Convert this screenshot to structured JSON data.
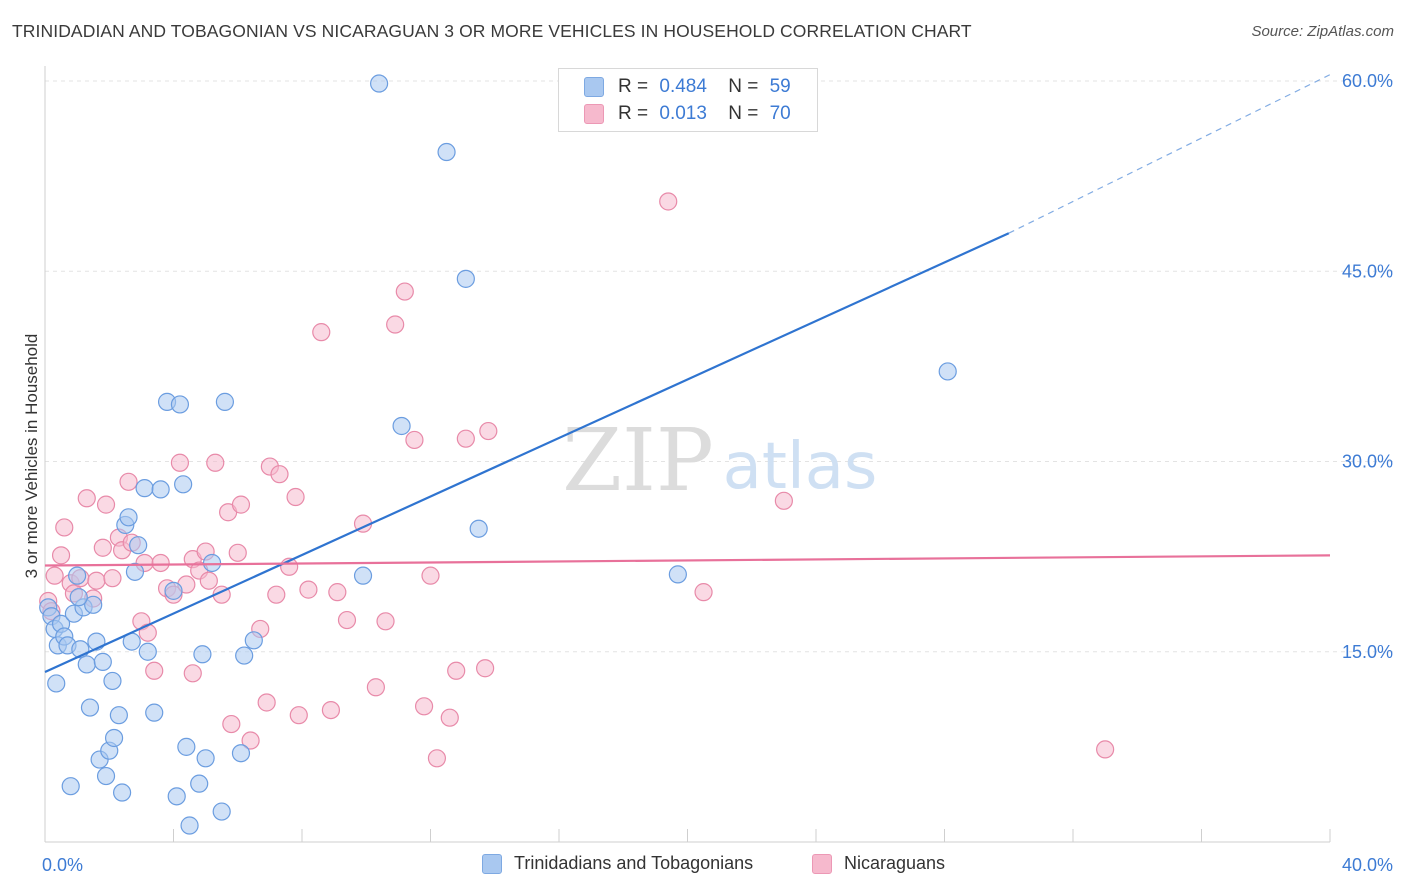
{
  "header": {
    "title": "TRINIDADIAN AND TOBAGONIAN VS NICARAGUAN 3 OR MORE VEHICLES IN HOUSEHOLD CORRELATION CHART",
    "source": "Source: ZipAtlas.com"
  },
  "watermark": {
    "zip": "ZIP",
    "atlas": "atlas"
  },
  "legend_top": {
    "rows": [
      {
        "r_label": "R =",
        "r_value": "0.484",
        "n_label": "N =",
        "n_value": "59",
        "color": "#a9c8f0"
      },
      {
        "r_label": "R =",
        "r_value": "0.013",
        "n_label": "N =",
        "n_value": "70",
        "color": "#f6b9cd"
      }
    ]
  },
  "legend_bottom": {
    "items": [
      {
        "label": "Trinidadians and Tobagonians",
        "color": "#a9c8f0"
      },
      {
        "label": "Nicaraguans",
        "color": "#f6b9cd"
      }
    ]
  },
  "chart_data": {
    "type": "scatter",
    "title": "TRINIDADIAN AND TOBAGONIAN VS NICARAGUAN 3 OR MORE VEHICLES IN HOUSEHOLD CORRELATION CHART",
    "xlabel": "",
    "ylabel": "3 or more Vehicles in Household",
    "xlim": [
      0,
      40
    ],
    "ylim": [
      0,
      60
    ],
    "x_tick_labels": [
      {
        "value": 0,
        "label": "0.0%"
      },
      {
        "value": 40,
        "label": "40.0%"
      }
    ],
    "y_tick_labels": [
      {
        "value": 15,
        "label": "15.0%"
      },
      {
        "value": 30,
        "label": "30.0%"
      },
      {
        "value": 45,
        "label": "45.0%"
      },
      {
        "value": 60,
        "label": "60.0%"
      }
    ],
    "grid": true,
    "legend_position": "top-center",
    "colors": {
      "blue_fill": "#a9c8f0",
      "blue_stroke": "#6b9de0",
      "blue_line": "#2f74d0",
      "pink_fill": "#f6b9cd",
      "pink_stroke": "#e88aa9",
      "pink_line": "#e8719a",
      "tick_label": "#3d7bd4",
      "grid": "#e3e3e3"
    },
    "series": [
      {
        "name": "Trinidadians and Tobagonians",
        "color": "#a9c8f0",
        "points": [
          [
            0.1,
            18.5
          ],
          [
            0.2,
            17.8
          ],
          [
            0.3,
            16.8
          ],
          [
            0.4,
            15.5
          ],
          [
            0.5,
            17.2
          ],
          [
            0.6,
            16.2
          ],
          [
            0.7,
            15.5
          ],
          [
            0.8,
            4.4
          ],
          [
            0.9,
            18.0
          ],
          [
            1.0,
            21.0
          ],
          [
            1.1,
            15.2
          ],
          [
            1.2,
            18.5
          ],
          [
            1.3,
            14.0
          ],
          [
            1.4,
            10.6
          ],
          [
            1.5,
            18.7
          ],
          [
            1.6,
            15.8
          ],
          [
            1.7,
            6.5
          ],
          [
            1.8,
            14.2
          ],
          [
            1.9,
            5.2
          ],
          [
            2.0,
            7.2
          ],
          [
            2.1,
            12.7
          ],
          [
            2.15,
            8.2
          ],
          [
            2.3,
            10.0
          ],
          [
            2.4,
            3.9
          ],
          [
            2.5,
            25.0
          ],
          [
            2.6,
            25.6
          ],
          [
            2.7,
            15.8
          ],
          [
            2.8,
            21.3
          ],
          [
            2.9,
            23.4
          ],
          [
            3.1,
            27.9
          ],
          [
            3.2,
            15.0
          ],
          [
            3.4,
            10.2
          ],
          [
            3.6,
            27.8
          ],
          [
            3.8,
            34.7
          ],
          [
            4.0,
            19.8
          ],
          [
            4.1,
            3.6
          ],
          [
            4.2,
            34.5
          ],
          [
            4.3,
            28.2
          ],
          [
            4.4,
            7.5
          ],
          [
            4.5,
            1.3
          ],
          [
            4.8,
            4.6
          ],
          [
            4.9,
            14.8
          ],
          [
            5.0,
            6.6
          ],
          [
            5.2,
            22.0
          ],
          [
            5.5,
            2.4
          ],
          [
            5.6,
            34.7
          ],
          [
            6.1,
            7.0
          ],
          [
            6.2,
            14.7
          ],
          [
            6.5,
            15.9
          ],
          [
            9.9,
            21.0
          ],
          [
            10.4,
            59.8
          ],
          [
            11.1,
            32.8
          ],
          [
            12.5,
            54.4
          ],
          [
            13.1,
            44.4
          ],
          [
            13.5,
            24.7
          ],
          [
            19.7,
            21.1
          ],
          [
            28.1,
            37.1
          ],
          [
            0.35,
            12.5
          ],
          [
            1.05,
            19.3
          ]
        ]
      },
      {
        "name": "Nicaraguans",
        "color": "#f6b9cd",
        "points": [
          [
            0.1,
            19.0
          ],
          [
            0.2,
            18.2
          ],
          [
            0.3,
            21.0
          ],
          [
            0.5,
            22.6
          ],
          [
            0.6,
            24.8
          ],
          [
            0.8,
            20.4
          ],
          [
            0.9,
            19.6
          ],
          [
            1.1,
            20.8
          ],
          [
            1.3,
            27.1
          ],
          [
            1.5,
            19.2
          ],
          [
            1.6,
            20.6
          ],
          [
            1.8,
            23.2
          ],
          [
            1.9,
            26.6
          ],
          [
            2.1,
            20.8
          ],
          [
            2.3,
            24.0
          ],
          [
            2.4,
            23.0
          ],
          [
            2.6,
            28.4
          ],
          [
            3.0,
            17.4
          ],
          [
            3.1,
            22.0
          ],
          [
            3.2,
            16.5
          ],
          [
            3.4,
            13.5
          ],
          [
            3.6,
            22.0
          ],
          [
            3.8,
            20.0
          ],
          [
            4.0,
            19.5
          ],
          [
            4.2,
            29.9
          ],
          [
            4.4,
            20.3
          ],
          [
            4.6,
            22.3
          ],
          [
            4.8,
            21.4
          ],
          [
            5.0,
            22.9
          ],
          [
            5.1,
            20.6
          ],
          [
            5.3,
            29.9
          ],
          [
            5.5,
            19.5
          ],
          [
            5.7,
            26.0
          ],
          [
            5.8,
            9.3
          ],
          [
            6.0,
            22.8
          ],
          [
            6.1,
            26.6
          ],
          [
            6.4,
            8.0
          ],
          [
            6.7,
            16.8
          ],
          [
            6.9,
            11.0
          ],
          [
            7.0,
            29.6
          ],
          [
            7.3,
            29.0
          ],
          [
            7.6,
            21.7
          ],
          [
            7.8,
            27.2
          ],
          [
            7.9,
            10.0
          ],
          [
            8.2,
            19.9
          ],
          [
            8.6,
            40.2
          ],
          [
            8.9,
            10.4
          ],
          [
            9.1,
            19.7
          ],
          [
            9.4,
            17.5
          ],
          [
            9.9,
            25.1
          ],
          [
            10.3,
            12.2
          ],
          [
            10.6,
            17.4
          ],
          [
            10.9,
            40.8
          ],
          [
            11.2,
            43.4
          ],
          [
            11.5,
            31.7
          ],
          [
            11.8,
            10.7
          ],
          [
            12.2,
            6.6
          ],
          [
            12.6,
            9.8
          ],
          [
            12.8,
            13.5
          ],
          [
            13.1,
            31.8
          ],
          [
            13.7,
            13.7
          ],
          [
            13.8,
            32.4
          ],
          [
            19.4,
            50.5
          ],
          [
            20.5,
            19.7
          ],
          [
            23.0,
            26.9
          ],
          [
            33.0,
            7.3
          ],
          [
            2.7,
            23.6
          ],
          [
            4.6,
            13.3
          ],
          [
            7.2,
            19.5
          ],
          [
            12.0,
            21.0
          ]
        ]
      }
    ],
    "trend_lines": [
      {
        "series": "Trinidadians and Tobagonians",
        "x": [
          0,
          30,
          40
        ],
        "y": [
          13.4,
          48.0,
          60.5
        ],
        "dashed_from_x": 30
      },
      {
        "series": "Nicaraguans",
        "x": [
          0,
          40
        ],
        "y": [
          21.8,
          22.6
        ]
      }
    ]
  }
}
